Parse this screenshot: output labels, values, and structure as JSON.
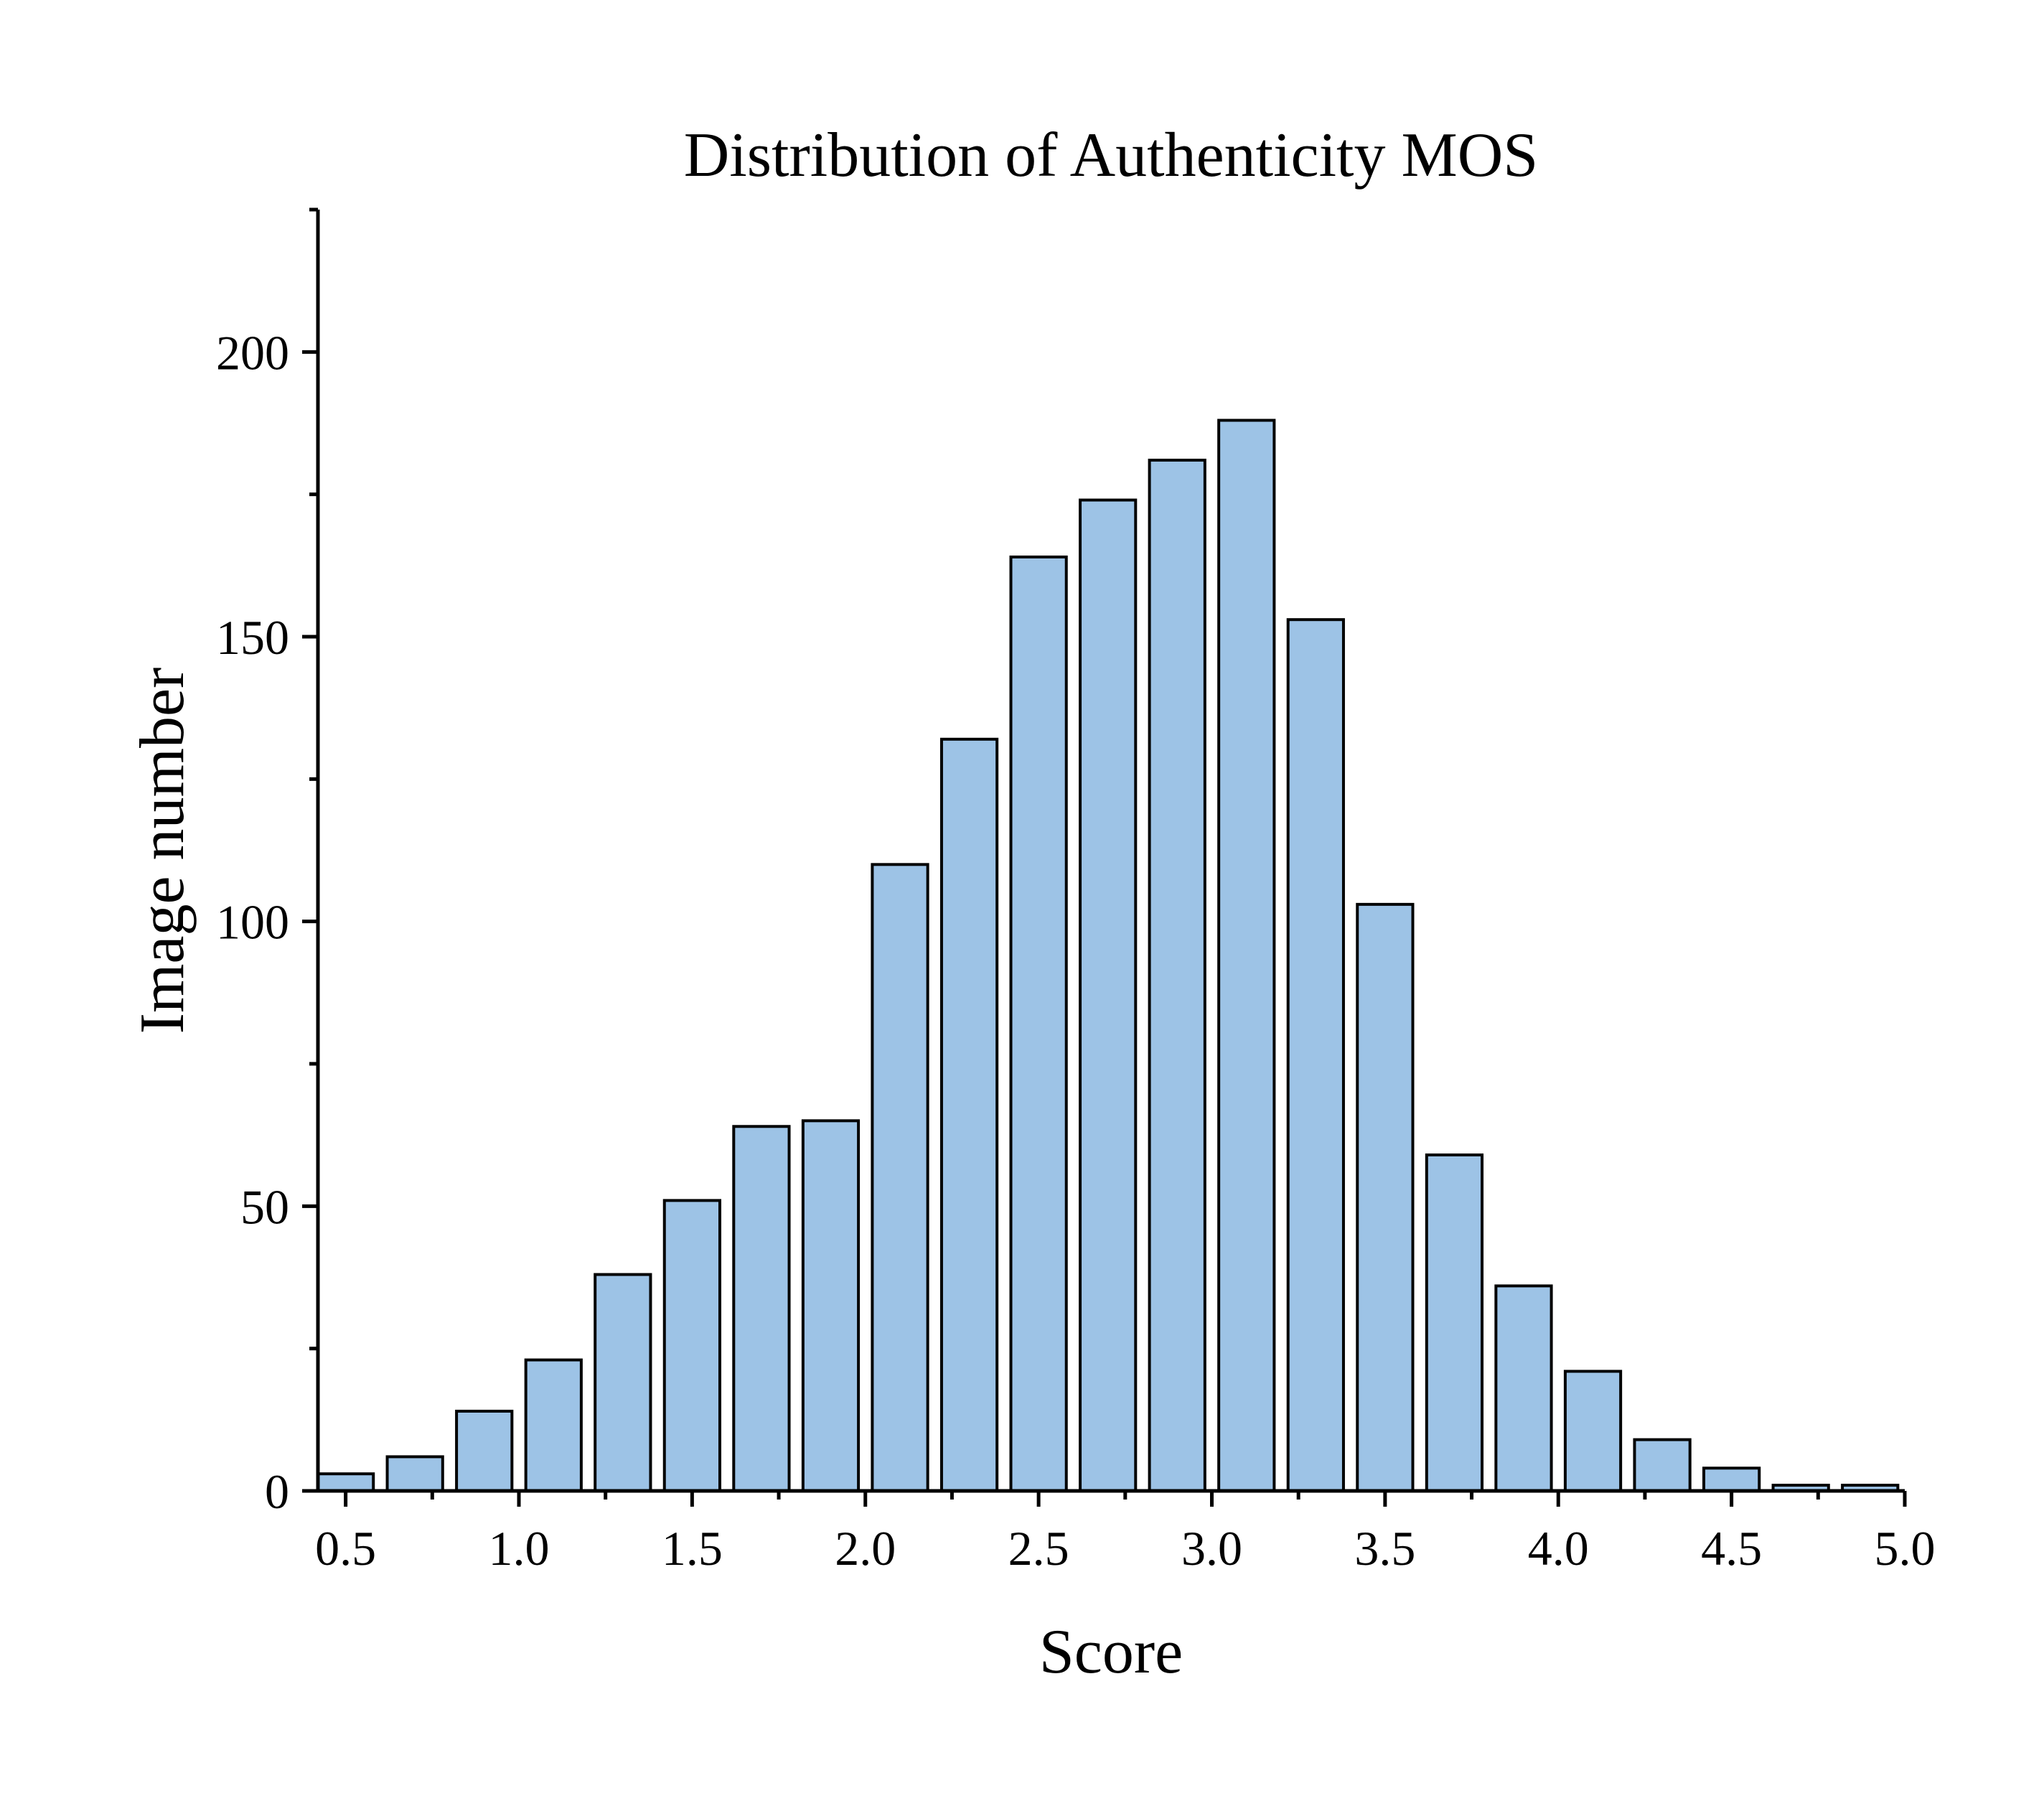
{
  "chart_data": {
    "type": "bar",
    "title": "Distribution of Authenticity MOS",
    "xlabel": "Score",
    "ylabel": "Image number",
    "xlim": [
      0.42,
      5.0
    ],
    "ylim": [
      0,
      225
    ],
    "bin_width": 0.2,
    "bins": [
      {
        "center": 0.5,
        "count": 3
      },
      {
        "center": 0.7,
        "count": 6
      },
      {
        "center": 0.9,
        "count": 14
      },
      {
        "center": 1.1,
        "count": 23
      },
      {
        "center": 1.3,
        "count": 38
      },
      {
        "center": 1.5,
        "count": 51
      },
      {
        "center": 1.7,
        "count": 64
      },
      {
        "center": 1.9,
        "count": 65
      },
      {
        "center": 2.1,
        "count": 110
      },
      {
        "center": 2.3,
        "count": 132
      },
      {
        "center": 2.5,
        "count": 164
      },
      {
        "center": 2.7,
        "count": 174
      },
      {
        "center": 2.9,
        "count": 181
      },
      {
        "center": 3.1,
        "count": 188
      },
      {
        "center": 3.3,
        "count": 153
      },
      {
        "center": 3.5,
        "count": 103
      },
      {
        "center": 3.7,
        "count": 59
      },
      {
        "center": 3.9,
        "count": 36
      },
      {
        "center": 4.1,
        "count": 21
      },
      {
        "center": 4.3,
        "count": 9
      },
      {
        "center": 4.5,
        "count": 4
      },
      {
        "center": 4.7,
        "count": 1
      },
      {
        "center": 4.9,
        "count": 1
      }
    ],
    "x_ticks": [
      0.5,
      1.0,
      1.5,
      2.0,
      2.5,
      3.0,
      3.5,
      4.0,
      4.5,
      5.0
    ],
    "x_tick_labels": [
      "0.5",
      "1.0",
      "1.5",
      "2.0",
      "2.5",
      "3.0",
      "3.5",
      "4.0",
      "4.5",
      "5.0"
    ],
    "x_minor_ticks": [
      0.75,
      1.25,
      1.75,
      2.25,
      2.75,
      3.25,
      3.75,
      4.25,
      4.75
    ],
    "y_ticks": [
      0,
      50,
      100,
      150,
      200
    ],
    "y_tick_labels": [
      "0",
      "50",
      "100",
      "150",
      "200"
    ],
    "y_minor_ticks": [
      25,
      75,
      125,
      175,
      225
    ],
    "bar_fill": "#9dc3e6",
    "bar_stroke": "#000000",
    "grid": false,
    "legend": "none"
  }
}
